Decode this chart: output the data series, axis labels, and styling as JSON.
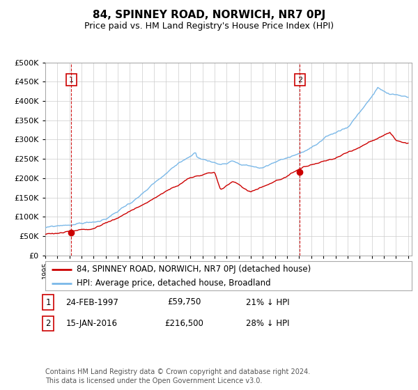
{
  "title": "84, SPINNEY ROAD, NORWICH, NR7 0PJ",
  "subtitle": "Price paid vs. HM Land Registry's House Price Index (HPI)",
  "bg_color": "#ffffff",
  "plot_bg_color": "#ffffff",
  "hpi_color": "#7ab8e8",
  "price_color": "#cc0000",
  "ylim": [
    0,
    500000
  ],
  "yticks": [
    0,
    50000,
    100000,
    150000,
    200000,
    250000,
    300000,
    350000,
    400000,
    450000,
    500000
  ],
  "sale1_year": 1997.15,
  "sale1_price": 59750,
  "sale1_label": "1",
  "sale2_year": 2016.04,
  "sale2_price": 216500,
  "sale2_label": "2",
  "legend_line1": "84, SPINNEY ROAD, NORWICH, NR7 0PJ (detached house)",
  "legend_line2": "HPI: Average price, detached house, Broadland",
  "footer_line1": "Contains HM Land Registry data © Crown copyright and database right 2024.",
  "footer_line2": "This data is licensed under the Open Government Licence v3.0.",
  "table_row1": [
    "1",
    "24-FEB-1997",
    "£59,750",
    "21% ↓ HPI"
  ],
  "table_row2": [
    "2",
    "15-JAN-2016",
    "£216,500",
    "28% ↓ HPI"
  ],
  "xlim_start": 1995,
  "xlim_end": 2025.3
}
